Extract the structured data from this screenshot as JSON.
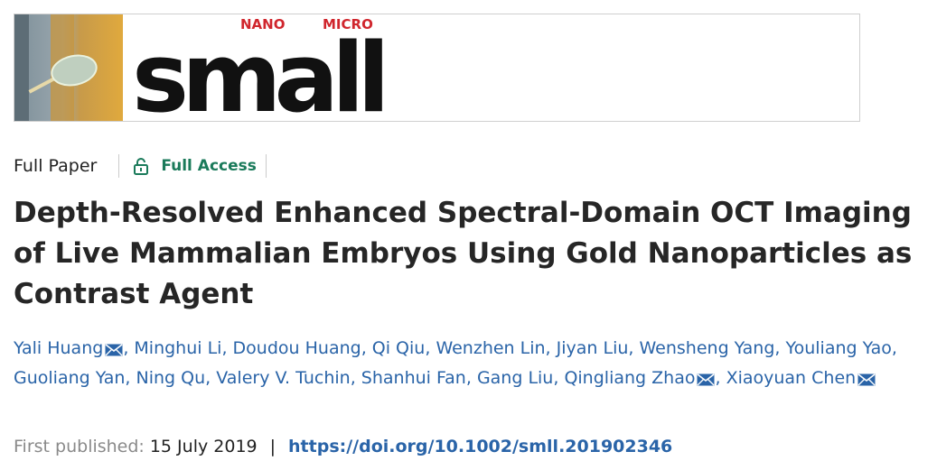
{
  "banner": {
    "brand_word": "small",
    "brand_nano": "NANO",
    "brand_micro": "MICRO",
    "brand_color": "#d0262d"
  },
  "meta": {
    "paper_type": "Full Paper",
    "access_label": "Full Access",
    "access_icon": "lock-open-icon",
    "access_color": "#1a7a5a"
  },
  "article": {
    "title": "Depth‐Resolved Enhanced Spectral‐Domain OCT Imaging of Live Mammalian Embryos Using Gold Nanoparticles as Contrast Agent"
  },
  "authors": [
    {
      "name": "Yali Huang",
      "corresponding": true
    },
    {
      "name": "Minghui Li",
      "corresponding": false
    },
    {
      "name": "Doudou Huang",
      "corresponding": false
    },
    {
      "name": "Qi Qiu",
      "corresponding": false
    },
    {
      "name": "Wenzhen Lin",
      "corresponding": false
    },
    {
      "name": "Jiyan Liu",
      "corresponding": false
    },
    {
      "name": "Wensheng Yang",
      "corresponding": false
    },
    {
      "name": "Youliang Yao",
      "corresponding": false
    },
    {
      "name": "Guoliang Yan",
      "corresponding": false
    },
    {
      "name": "Ning Qu",
      "corresponding": false
    },
    {
      "name": "Valery V. Tuchin",
      "corresponding": false
    },
    {
      "name": "Shanhui Fan",
      "corresponding": false
    },
    {
      "name": "Gang Liu",
      "corresponding": false
    },
    {
      "name": "Qingliang Zhao",
      "corresponding": true
    },
    {
      "name": "Xiaoyuan Chen",
      "corresponding": true
    }
  ],
  "publication": {
    "first_published_label": "First published:",
    "date": "15 July 2019",
    "separator": "|",
    "doi": "https://doi.org/10.1002/smll.201902346"
  }
}
